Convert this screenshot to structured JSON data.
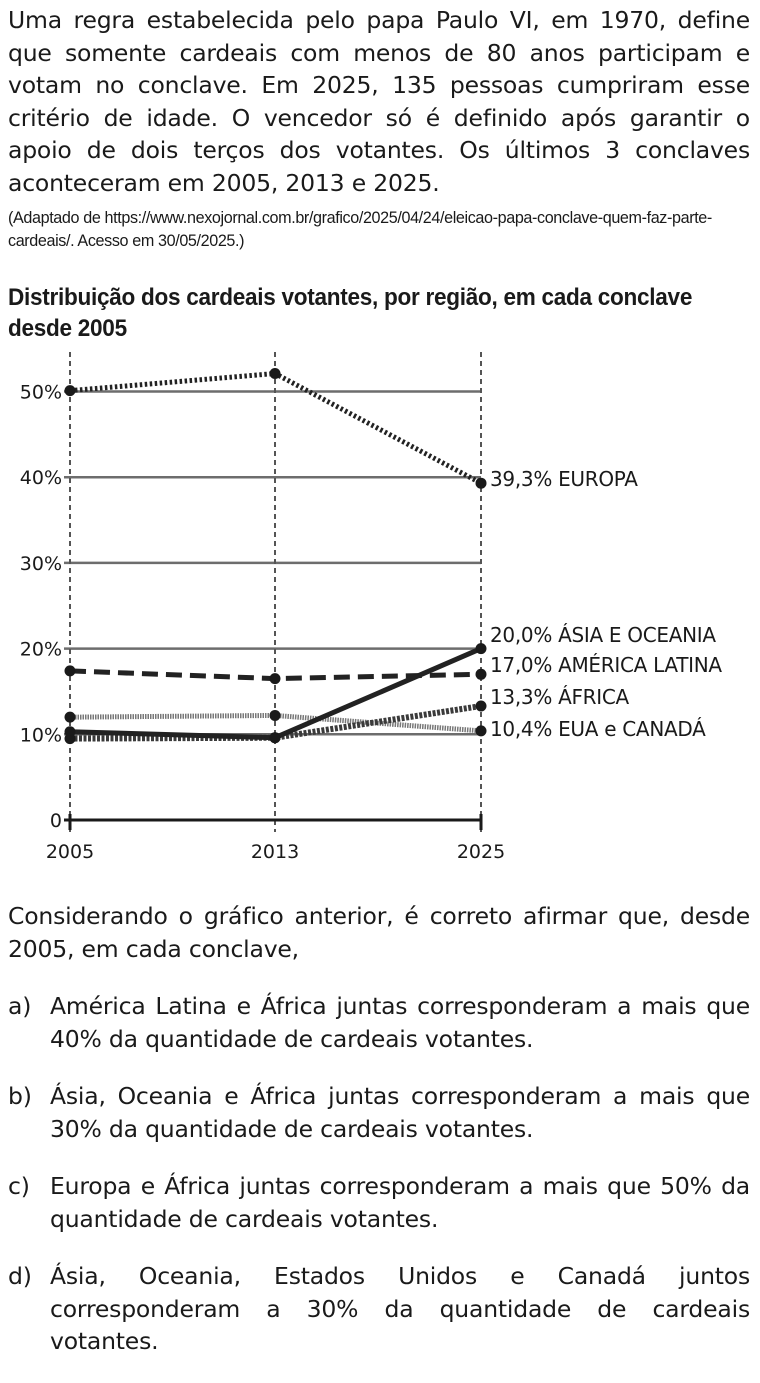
{
  "intro_text": "Uma regra estabelecida pelo papa Paulo VI, em 1970, define que somente cardeais com menos de 80 anos participam e votam no conclave. Em 2025, 135 pessoas cumpriram esse critério de idade. O vencedor só é definido após garantir o apoio de dois terços dos votantes. Os últimos 3 conclaves aconteceram em 2005, 2013 e 2025.",
  "source_text": "(Adaptado de https://www.nexojornal.com.br/grafico/2025/04/24/eleicao-papa-conclave-quem-faz-parte-cardeais/. Acesso em 30/05/2025.)",
  "chart_data": {
    "type": "line",
    "title": "Distribuição dos cardeais votantes, por região, em cada conclave desde 2005",
    "x": [
      "2005",
      "2013",
      "2025"
    ],
    "yticks": [
      "0",
      "10%",
      "20%",
      "30%",
      "40%",
      "50%"
    ],
    "ylim": [
      0,
      55
    ],
    "grid": true,
    "series": [
      {
        "name": "EUROPA",
        "label": "39,3% EUROPA",
        "values": [
          50.1,
          52.1,
          39.3
        ],
        "style": "dotted"
      },
      {
        "name": "ÁSIA E OCEANIA",
        "label": "20,0% ÁSIA E OCEANIA",
        "values": [
          10.3,
          9.6,
          20.0
        ],
        "style": "solid"
      },
      {
        "name": "AMÉRICA LATINA",
        "label": "17,0% AMÉRICA LATINA",
        "values": [
          17.4,
          16.5,
          17.0
        ],
        "style": "dashed"
      },
      {
        "name": "ÁFRICA",
        "label": "13,3% ÁFRICA",
        "values": [
          9.5,
          9.6,
          13.3
        ],
        "style": "textured"
      },
      {
        "name": "EUA e CANADÁ",
        "label": "10,4% EUA e CANADÁ",
        "values": [
          12.0,
          12.2,
          10.4
        ],
        "style": "thin-textured"
      }
    ]
  },
  "question_text": "Considerando o gráfico anterior, é correto afirmar que, desde 2005, em cada conclave,",
  "options": [
    {
      "letter": "a)",
      "text": "América Latina e África juntas corresponderam a mais que 40% da quantidade de cardeais votantes."
    },
    {
      "letter": "b)",
      "text": "Ásia, Oceania e África juntas corresponderam a mais que 30% da quantidade de cardeais votantes."
    },
    {
      "letter": "c)",
      "text": "Europa e África juntas corresponderam a mais que 50% da quantidade de cardeais votantes."
    },
    {
      "letter": "d)",
      "text": "Ásia, Oceania, Estados Unidos e Canadá juntos corresponderam a 30% da quantidade de cardeais votantes."
    }
  ]
}
